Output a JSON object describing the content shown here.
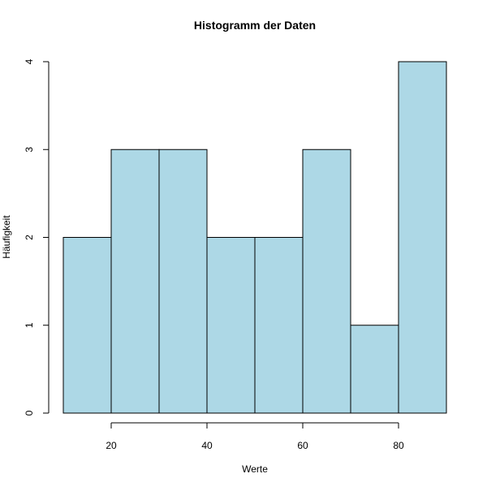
{
  "chart_data": {
    "type": "bar",
    "title": "Histogramm der Daten",
    "xlabel": "Werte",
    "ylabel": "Häufigkeit",
    "bins": [
      {
        "start": 10,
        "end": 20,
        "count": 2
      },
      {
        "start": 20,
        "end": 30,
        "count": 3
      },
      {
        "start": 30,
        "end": 40,
        "count": 3
      },
      {
        "start": 40,
        "end": 50,
        "count": 2
      },
      {
        "start": 50,
        "end": 60,
        "count": 2
      },
      {
        "start": 60,
        "end": 70,
        "count": 3
      },
      {
        "start": 70,
        "end": 80,
        "count": 1
      },
      {
        "start": 80,
        "end": 90,
        "count": 4
      }
    ],
    "xlim": [
      10,
      90
    ],
    "ylim": [
      0,
      4
    ],
    "x_ticks": [
      20,
      40,
      60,
      80
    ],
    "y_ticks": [
      0,
      1,
      2,
      3,
      4
    ],
    "bar_color": "#ADD8E6",
    "bar_stroke": "#000000",
    "grid": false
  }
}
